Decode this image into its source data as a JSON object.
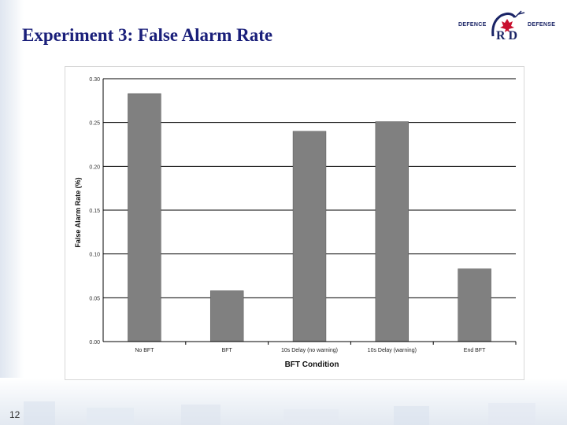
{
  "slide": {
    "title": "Experiment 3: False Alarm Rate",
    "page_number": "12"
  },
  "logo": {
    "left_text": "DEFENCE",
    "right_text": "DEFENSE",
    "monogram": "R D"
  },
  "colors": {
    "title": "#1a1f7a",
    "bar_fill": "#808080",
    "gridline": "#000000"
  },
  "chart_data": {
    "type": "bar",
    "categories": [
      "No BFT",
      "BFT",
      "10s Delay (no warning)",
      "10s Delay (warning)",
      "End BFT"
    ],
    "values": [
      0.283,
      0.058,
      0.24,
      0.251,
      0.083
    ],
    "xlabel": "BFT Condition",
    "ylabel": "False Alarm Rate (%)",
    "ylim": [
      0,
      0.3
    ],
    "yticks": [
      "0.00",
      "0.05",
      "0.10",
      "0.15",
      "0.20",
      "0.25",
      "0.30"
    ],
    "grid": true,
    "legend": "none"
  }
}
